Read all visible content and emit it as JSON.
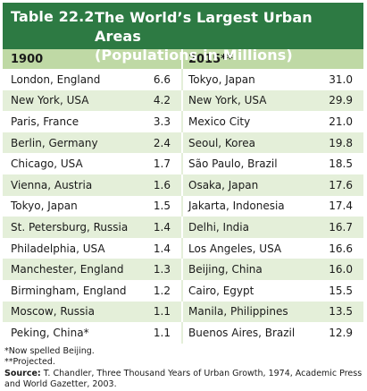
{
  "table": {
    "label": "Table 22.2",
    "title_line1": "The World’s Largest Urban Areas",
    "title_line2": "(Populations in Millions)",
    "col_1900": "1900",
    "col_2015": "2015**",
    "rows": [
      {
        "city1900": "London, England",
        "pop1900": "6.6",
        "city2015": "Tokyo, Japan",
        "pop2015": "31.0"
      },
      {
        "city1900": "New York, USA",
        "pop1900": "4.2",
        "city2015": "New York, USA",
        "pop2015": "29.9"
      },
      {
        "city1900": "Paris, France",
        "pop1900": "3.3",
        "city2015": "Mexico City",
        "pop2015": "21.0"
      },
      {
        "city1900": "Berlin, Germany",
        "pop1900": "2.4",
        "city2015": "Seoul, Korea",
        "pop2015": "19.8"
      },
      {
        "city1900": "Chicago, USA",
        "pop1900": "1.7",
        "city2015": "São Paulo, Brazil",
        "pop2015": "18.5"
      },
      {
        "city1900": "Vienna, Austria",
        "pop1900": "1.6",
        "city2015": "Osaka, Japan",
        "pop2015": "17.6"
      },
      {
        "city1900": "Tokyo, Japan",
        "pop1900": "1.5",
        "city2015": "Jakarta, Indonesia",
        "pop2015": "17.4"
      },
      {
        "city1900": "St. Petersburg, Russia",
        "pop1900": "1.4",
        "city2015": "Delhi, India",
        "pop2015": "16.7"
      },
      {
        "city1900": "Philadelphia, USA",
        "pop1900": "1.4",
        "city2015": "Los Angeles, USA",
        "pop2015": "16.6"
      },
      {
        "city1900": "Manchester, England",
        "pop1900": "1.3",
        "city2015": "Beijing, China",
        "pop2015": "16.0"
      },
      {
        "city1900": "Birmingham, England",
        "pop1900": "1.2",
        "city2015": "Cairo, Egypt",
        "pop2015": "15.5"
      },
      {
        "city1900": "Moscow, Russia",
        "pop1900": "1.1",
        "city2015": "Manila, Philippines",
        "pop2015": "13.5"
      },
      {
        "city1900": "Peking, China*",
        "pop1900": "1.1",
        "city2015": "Buenos Aires, Brazil",
        "pop2015": "12.9"
      }
    ]
  },
  "notes": {
    "note1": "*Now spelled Beijing.",
    "note2": "**Projected.",
    "source_label": "Source:",
    "source_text": "T. Chandler, Three Thousand Years of Urban Growth, 1974, Academic Press and World Gazetter, 2003."
  },
  "colors": {
    "header_green": "#2d7a43",
    "column_header": "#bfd9a5",
    "stripe": "#e4efd9"
  }
}
